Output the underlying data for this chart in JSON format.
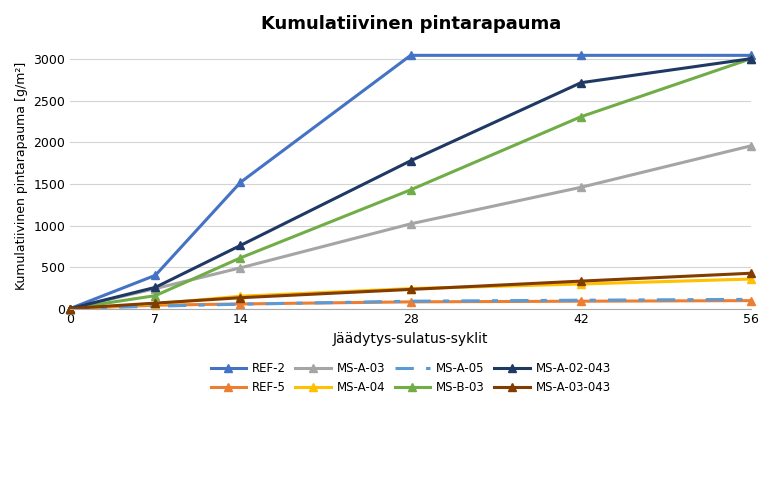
{
  "title": "Kumulatiivinen pintarapauma",
  "xlabel": "Jäädytys-sulatus-syklit",
  "ylabel": "Kumulatiivinen pintarapauma [g/m²]",
  "x_ticks": [
    0,
    7,
    14,
    28,
    42,
    56
  ],
  "xlim": [
    0,
    56
  ],
  "ylim": [
    0,
    3200
  ],
  "y_ticks": [
    0,
    500,
    1000,
    1500,
    2000,
    2500,
    3000
  ],
  "series": [
    {
      "label": "REF-2",
      "color": "#4472c4",
      "x": [
        0,
        7,
        14,
        28,
        42,
        56
      ],
      "y": [
        0,
        400,
        1520,
        3050,
        3050,
        3050
      ],
      "linestyle": "-",
      "marker": "^",
      "markersize": 6,
      "linewidth": 2.2
    },
    {
      "label": "REF-5",
      "color": "#ed7d31",
      "x": [
        0,
        7,
        14,
        28,
        42,
        56
      ],
      "y": [
        0,
        40,
        55,
        80,
        88,
        95
      ],
      "linestyle": "-",
      "marker": "^",
      "markersize": 6,
      "linewidth": 2.2
    },
    {
      "label": "MS-A-03",
      "color": "#a5a5a5",
      "x": [
        0,
        7,
        14,
        28,
        42,
        56
      ],
      "y": [
        0,
        240,
        490,
        1020,
        1460,
        1960
      ],
      "linestyle": "-",
      "marker": "^",
      "markersize": 6,
      "linewidth": 2.2
    },
    {
      "label": "MS-A-04",
      "color": "#ffc000",
      "x": [
        0,
        7,
        14,
        28,
        42,
        56
      ],
      "y": [
        0,
        55,
        148,
        240,
        295,
        355
      ],
      "linestyle": "-",
      "marker": "^",
      "markersize": 6,
      "linewidth": 2.2
    },
    {
      "label": "MS-A-05",
      "color": "#5b9bd5",
      "x": [
        0,
        7,
        14,
        28,
        42,
        56
      ],
      "y": [
        0,
        28,
        52,
        88,
        100,
        110
      ],
      "linestyle": "--",
      "marker": null,
      "markersize": 0,
      "linewidth": 2.2,
      "dashes": [
        6,
        4,
        2,
        4
      ]
    },
    {
      "label": "MS-B-03",
      "color": "#70ad47",
      "x": [
        0,
        7,
        14,
        28,
        42,
        56
      ],
      "y": [
        0,
        155,
        610,
        1430,
        2310,
        3010
      ],
      "linestyle": "-",
      "marker": "^",
      "markersize": 6,
      "linewidth": 2.2
    },
    {
      "label": "MS-A-02-043",
      "color": "#1f3864",
      "x": [
        0,
        7,
        14,
        28,
        42,
        56
      ],
      "y": [
        0,
        255,
        760,
        1780,
        2720,
        3010
      ],
      "linestyle": "-",
      "marker": "^",
      "markersize": 6,
      "linewidth": 2.2
    },
    {
      "label": "MS-A-03-043",
      "color": "#833c00",
      "x": [
        0,
        7,
        14,
        28,
        42,
        56
      ],
      "y": [
        0,
        65,
        130,
        230,
        330,
        425
      ],
      "linestyle": "-",
      "marker": "^",
      "markersize": 6,
      "linewidth": 2.2
    }
  ],
  "legend_order_col": [
    [
      "REF-2",
      "MS-A-05"
    ],
    [
      "REF-5",
      "MS-B-03"
    ],
    [
      "MS-A-03",
      "MS-A-02-043"
    ],
    [
      "MS-A-04",
      "MS-A-03-043"
    ]
  ],
  "background_color": "#ffffff",
  "grid_color": "#d4d4d4"
}
